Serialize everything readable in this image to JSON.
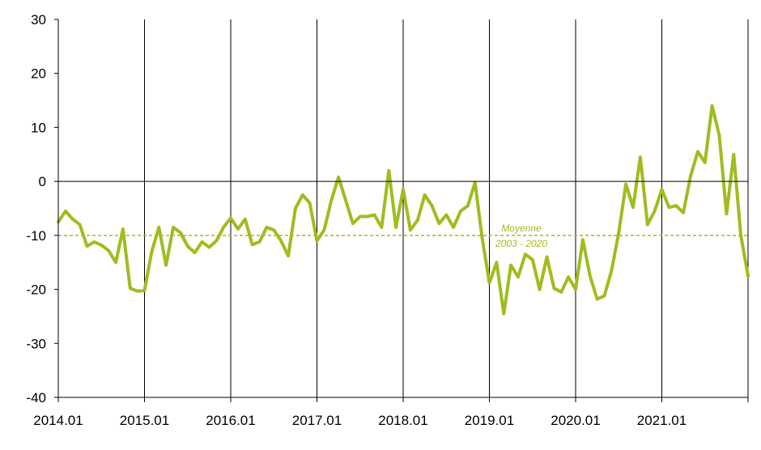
{
  "chart_data": {
    "type": "line",
    "title": "",
    "xlabel": "",
    "ylabel": "",
    "ylim": [
      -40,
      30
    ],
    "yticks": [
      30,
      20,
      10,
      0,
      -10,
      -20,
      -30,
      -40
    ],
    "ytick_labels": [
      "30",
      "20",
      "10",
      "0",
      "-10",
      "-20",
      "-30",
      "-40"
    ],
    "x_start": "2014.01",
    "x_end": "2021.12",
    "xtick_labels": [
      "2014.01",
      "2015.01",
      "2016.01",
      "2017.01",
      "2018.01",
      "2019.01",
      "2020.01",
      "2021.01"
    ],
    "grid": "vertical lines at each year",
    "colors": {
      "series": "#9ebd1f",
      "axis": "#000000",
      "grid": "#000000",
      "reference": "#9ebd1f"
    },
    "series": [
      {
        "values": [
          -7.5,
          -5.5,
          -7,
          -8,
          -12,
          -11.2,
          -11.8,
          -12.8,
          -15,
          -8.8,
          -19.8,
          -20.3,
          -20.2,
          -13,
          -8.5,
          -15.5,
          -8.5,
          -9.5,
          -12,
          -13.2,
          -11.2,
          -12.2,
          -11,
          -8.5,
          -6.8,
          -8.8,
          -7,
          -11.7,
          -11.2,
          -8.5,
          -9,
          -11,
          -13.8,
          -5,
          -2.5,
          -4,
          -11,
          -9,
          -3.5,
          0.8,
          -3.5,
          -7.8,
          -6.5,
          -6.5,
          -6.2,
          -8.5,
          2,
          -8.5,
          -1.5,
          -9,
          -7.2,
          -2.5,
          -4.5,
          -7.8,
          -6.2,
          -8.5,
          -5.5,
          -4.5,
          -0.2,
          -10.5,
          -18.8,
          -15,
          -24.5,
          -15.5,
          -17.7,
          -13.5,
          -14.5,
          -20,
          -14,
          -19.8,
          -20.5,
          -17.7,
          -20,
          -10.8,
          -17.5,
          -21.8,
          -21.2,
          -16.5,
          -9.5,
          -0.5,
          -4.8,
          4.5,
          -8,
          -5.5,
          -1.5,
          -4.8,
          -4.5,
          -5.8,
          1,
          5.5,
          3.5,
          14,
          8.5,
          -6,
          5,
          -10,
          -17.5
        ]
      }
    ],
    "reference_line": {
      "value": -10,
      "label_line1": "Moyenne",
      "label_line2": "2003 - 2020"
    }
  }
}
